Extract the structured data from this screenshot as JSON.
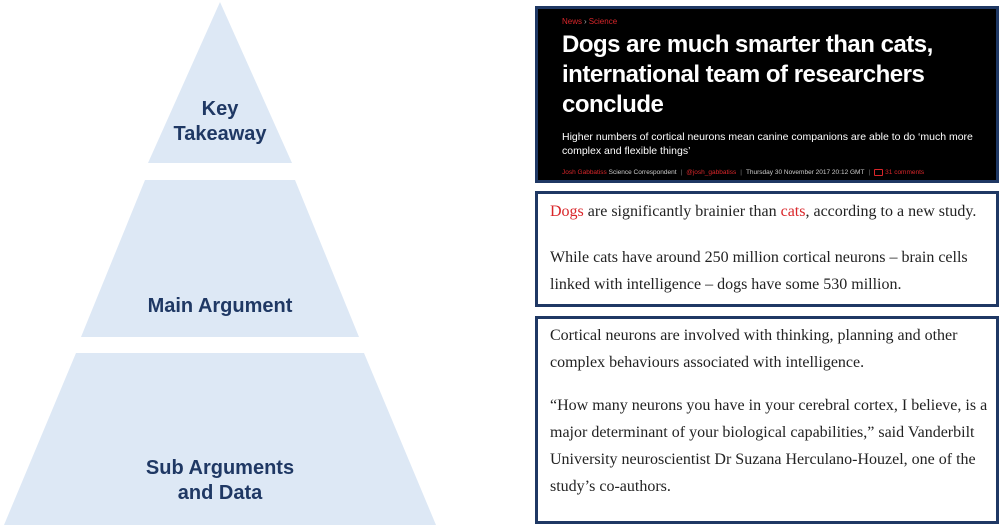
{
  "pyramid": {
    "fill": "#dde8f5",
    "label_color": "#1f3864",
    "tiers": [
      {
        "lines": [
          "Key",
          "Takeaway"
        ]
      },
      {
        "lines": [
          "Main Argument"
        ]
      },
      {
        "lines": [
          "Sub Arguments",
          "and Data"
        ]
      }
    ]
  },
  "article": {
    "breadcrumb": [
      "News",
      "Science"
    ],
    "headline": "Dogs are much smarter than cats, international team of researchers conclude",
    "standfirst": "Higher numbers of cortical neurons mean canine companions are able to do ‘much more complex and flexible things’",
    "byline": {
      "author": "Josh Gabbatiss",
      "role": "Science Correspondent",
      "handle": "@josh_gabbatiss",
      "date": "Thursday 30 November 2017 20:12 GMT",
      "comments": "31 comments"
    },
    "accent_color": "#d9262a"
  },
  "body": {
    "p1": {
      "w1": "Dogs",
      "t1": " are significantly brainier than ",
      "w2": "cats",
      "t2": ", according to a new study."
    },
    "p2": "While cats have around 250 million cortical neurons – brain cells linked with intelligence – dogs have some 530 million.",
    "p3": "Cortical neurons are involved with thinking, planning and other complex behaviours associated with intelligence.",
    "p4": "“How many neurons you have in your cerebral cortex, I believe, is a major determinant of your biological capabilities,” said Vanderbilt University neuroscientist Dr Suzana Herculano-Houzel, one of the study’s co-authors."
  }
}
